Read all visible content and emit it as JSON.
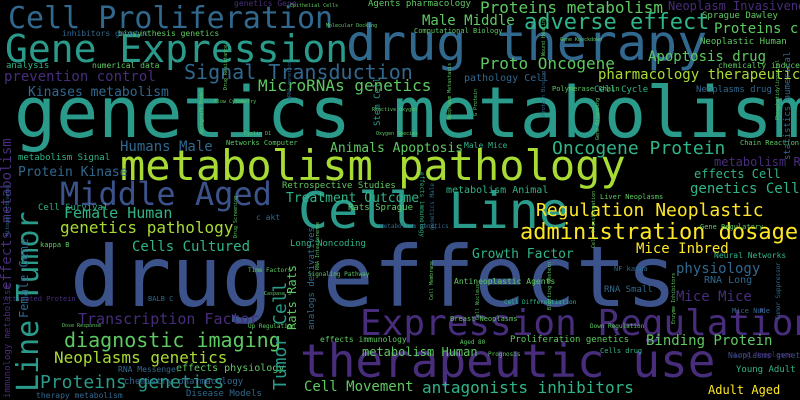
{
  "colors": {
    "background": "#000000",
    "teal": "#2a9a8a",
    "teal_light": "#30b48a",
    "green": "#5ec962",
    "lime": "#a8db34",
    "yellow": "#fde725",
    "blue": "#3b528b",
    "slate_blue": "#31688e",
    "purple": "#472d7b",
    "dark_purple": "#44015a",
    "aqua": "#21918c"
  },
  "words": {
    "drug_effects": "drug effects",
    "genetics_metabolism": "genetics metabolism",
    "therapeutic_use": "therapeutic use",
    "drug_therapy": "drug therapy",
    "gene_expression": "Gene Expression",
    "cell_line": "Cell Line",
    "metabolism_pathology": "metabolism pathology",
    "expression_regulation": "Expression Regulation",
    "cell_proliferation": "Cell Proliferation",
    "line_tumor": "Line Tumor",
    "middle_aged": "Middle Aged",
    "administration_dosage": "administration dosage",
    "adverse_effect": "adverse effect",
    "signal_transduction": "Signal Transduction",
    "regulation_neoplastic": "Regulation Neoplastic",
    "diagnostic_imaging": "diagnostic imaging",
    "microRNAs_genetics": "MicroRNAs genetics",
    "proteins_metabolism": "Proteins metabolism",
    "proto_oncogene": "Proto Oncogene",
    "oncogene_protein": "Oncogene Protein",
    "pharmacology_therapeutic": "pharmacology therapeutic",
    "neoplasms_genetics": "Neoplasms genetics",
    "proteins_genetics": "Proteins genetics",
    "genetics_pathology": "genetics pathology",
    "female_human": "Female Human",
    "cells_cultured": "Cells Cultured",
    "humans_male": "Humans Male",
    "antagonists_inhibitors": "antagonists inhibitors",
    "cell_movement": "Cell Movement",
    "transcription_factor": "Transcription Factor",
    "tumor_cell": "Tumor Cell",
    "mice_inbred": "Mice Inbred",
    "mice_mice": "Mice Mice",
    "binding_protein": "Binding Protein",
    "adult_aged": "Adult Aged",
    "genetics_cell": "genetics Cell",
    "prevention_control": "prevention control",
    "kinases_metabolism": "Kinases metabolism",
    "protein_kinase": "Protein Kinase",
    "male_middle": "Male Middle",
    "proteins_c": "Proteins c",
    "apoptosis_drug": "Apoptosis drug",
    "animals_apoptosis": "Animals Apoptosis",
    "metabolism_human": "metabolism Human",
    "physiology": "physiology",
    "growth_factor": "Growth Factor",
    "treatment_outcome": "Treatment Outcome",
    "effects_physiology": "effects physiology",
    "metabolism_rna": "metabolism RNA",
    "neoplasm_invasiveness": "Neoplasm Invasiveness",
    "sprague_dawley": "Sprague Dawley",
    "neoplastic_human": "Neoplastic Human",
    "chemically_induced": "chemically induced",
    "analysis": "analysis",
    "numerical_data": "numerical data",
    "biosynthesis_genetics": "biosynthesis genetics",
    "agents_pharmacology": "Agents pharmacology",
    "computational_biology": "Computational Biology",
    "disease_models": "Disease Models",
    "therapy_metabolism": "therapy metabolism",
    "retrospective_studies": "Retrospective Studies",
    "long_noncoding": "Long Noncoding",
    "rats_sprague": "Rats Sprague",
    "metabolism_animal": "metabolism Animal",
    "neural_networks": "Neural Networks",
    "rna_long": "RNA Long",
    "effects_cell": "effects Cell",
    "metabolism_signal": "metabolism Signal",
    "male_mice": "Male Mice",
    "pathology_cell": "pathology Cell",
    "cell_cycle": "Cell Cycle",
    "polymerase_chain": "Polymerase Chain",
    "networks_computer": "Networks Computer",
    "neoplasms_drug": "Neoplasms drug",
    "kappa_b": "kappa B",
    "cell_survival": "Cell Survival",
    "female_gene": "Female Gene",
    "immunology_metabolism": "immunology metabolism",
    "effects_metabolism": "effects metabolism",
    "rats_rats": "Rats Rats",
    "statistics_numerical": "statistics numerical",
    "young_adult": "Young Adult",
    "stem_cell": "Stem Cell",
    "inhibitors_genetic": "inhibitors genetic",
    "genetics_gene": "genetics Gene",
    "chemistry_pharmacology": "chemistry pharmacology",
    "rna_messenger": "RNA Messenger",
    "proliferation_genetics": "Proliferation genetics",
    "antineoplastic_agents": "Antineoplastic Agents",
    "metabolism_genetics": "metabolism genetics",
    "activated_protein": "Activated Protein",
    "rna_small": "RNA Small",
    "effects_immunology": "effects immunology",
    "analogs_derivatives": "analogs derivatives",
    "neoplasms_genetic": "Neoplasms genetic",
    "genetics_male": "genetics Male",
    "signaling_pathway": "Signaling Pathway",
    "mice_nude": "Mice Nude",
    "c_akt": "c akt",
    "balb_c": "BALB C",
    "tumor_suppressor": "Tumor Suppressor",
    "xenograft_model": "Xenograft Model",
    "dose_response": "Dose Response",
    "drug_resistance": "Drug Resistance",
    "cell_differentiation": "Cell Differentiation",
    "gene_regulatory": "Gene Regulatory",
    "nf_kappa": "NF kappa",
    "phosphatidylinositol": "Phosphatidylinositol",
    "mrna_genetics": "mRNA genetics",
    "protein_binding": "Protein Binding",
    "mitogen_activated": "Mitogen Activated",
    "cell_membrane": "Cell Membrane",
    "gene_knockdown": "Gene Knockdown",
    "blotting_western": "Blotting Western",
    "rna_interference": "RNA Interference",
    "enzyme_inhibitors": "Enzyme Inhibitors",
    "cell_nucleus": "Cell Nucleus",
    "reactive_oxygen": "Reactive Oxygen",
    "oxygen_species": "Oxygen Species",
    "time_factors": "Time Factors",
    "drug_screening": "Drug Screening",
    "cell_transformation": "Cell Transformation",
    "epithelial_cells": "Epithelial Cells",
    "gene_silencing": "Gene Silencing",
    "wound_healing": "Wound Healing",
    "flow_cytometry": "Flow Cytometry",
    "molecular_docking": "Molecular Docking",
    "cyclin_d1": "Cyclin D1",
    "caspase_3": "Caspase 3",
    "neoplasm_metastasis": "Neoplasm Metastasis",
    "aged_80": "Aged 80",
    "g_protein": "G Protein",
    "up_regulation": "Up Regulation",
    "down_regulation": "Down Regulation",
    "cells_drug": "Cells drug",
    "chain_reaction": "Chain Reaction",
    "prognosis": "Prognosis",
    "lung_neoplasms": "Lung Neoplasms",
    "liver_neoplasms": "Liver Neoplasms",
    "breast_neoplasms": "Breast Neoplasms"
  }
}
